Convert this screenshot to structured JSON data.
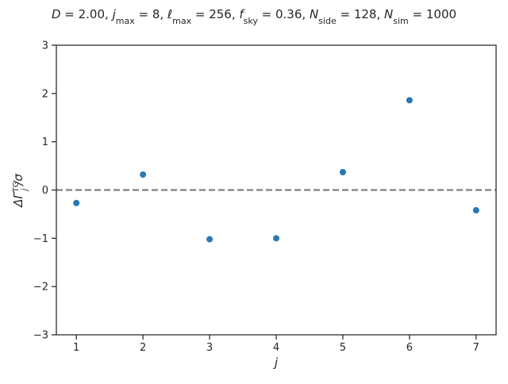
{
  "chart_data": {
    "type": "scatter",
    "title_parts": {
      "D": "2.00",
      "jmax": "8",
      "lmax": "256",
      "fsky": "0.36",
      "nside": "128",
      "nsim": "1000"
    },
    "xlabel": "j",
    "ylabel_main": "ΔΓ",
    "ylabel_sub": "j",
    "ylabel_sup": "TG",
    "ylabel_tail": "/σ",
    "x_ticks": [
      1,
      2,
      3,
      4,
      5,
      6,
      7
    ],
    "y_ticks": [
      -3,
      -2,
      -1,
      0,
      1,
      2,
      3
    ],
    "y_tick_labels": [
      "−3",
      "−2",
      "−1",
      "0",
      "1",
      "2",
      "3"
    ],
    "xlim": [
      0.7,
      7.3
    ],
    "ylim": [
      -3,
      3
    ],
    "x": [
      1,
      2,
      3,
      4,
      5,
      6,
      7
    ],
    "y": [
      -0.27,
      0.32,
      -1.02,
      -1.0,
      0.37,
      1.86,
      -0.42
    ],
    "reference_line": {
      "y": 0,
      "style": "dashed",
      "color": "#808080"
    },
    "marker_color": "#2878b5",
    "grid": false,
    "legend": "none"
  }
}
